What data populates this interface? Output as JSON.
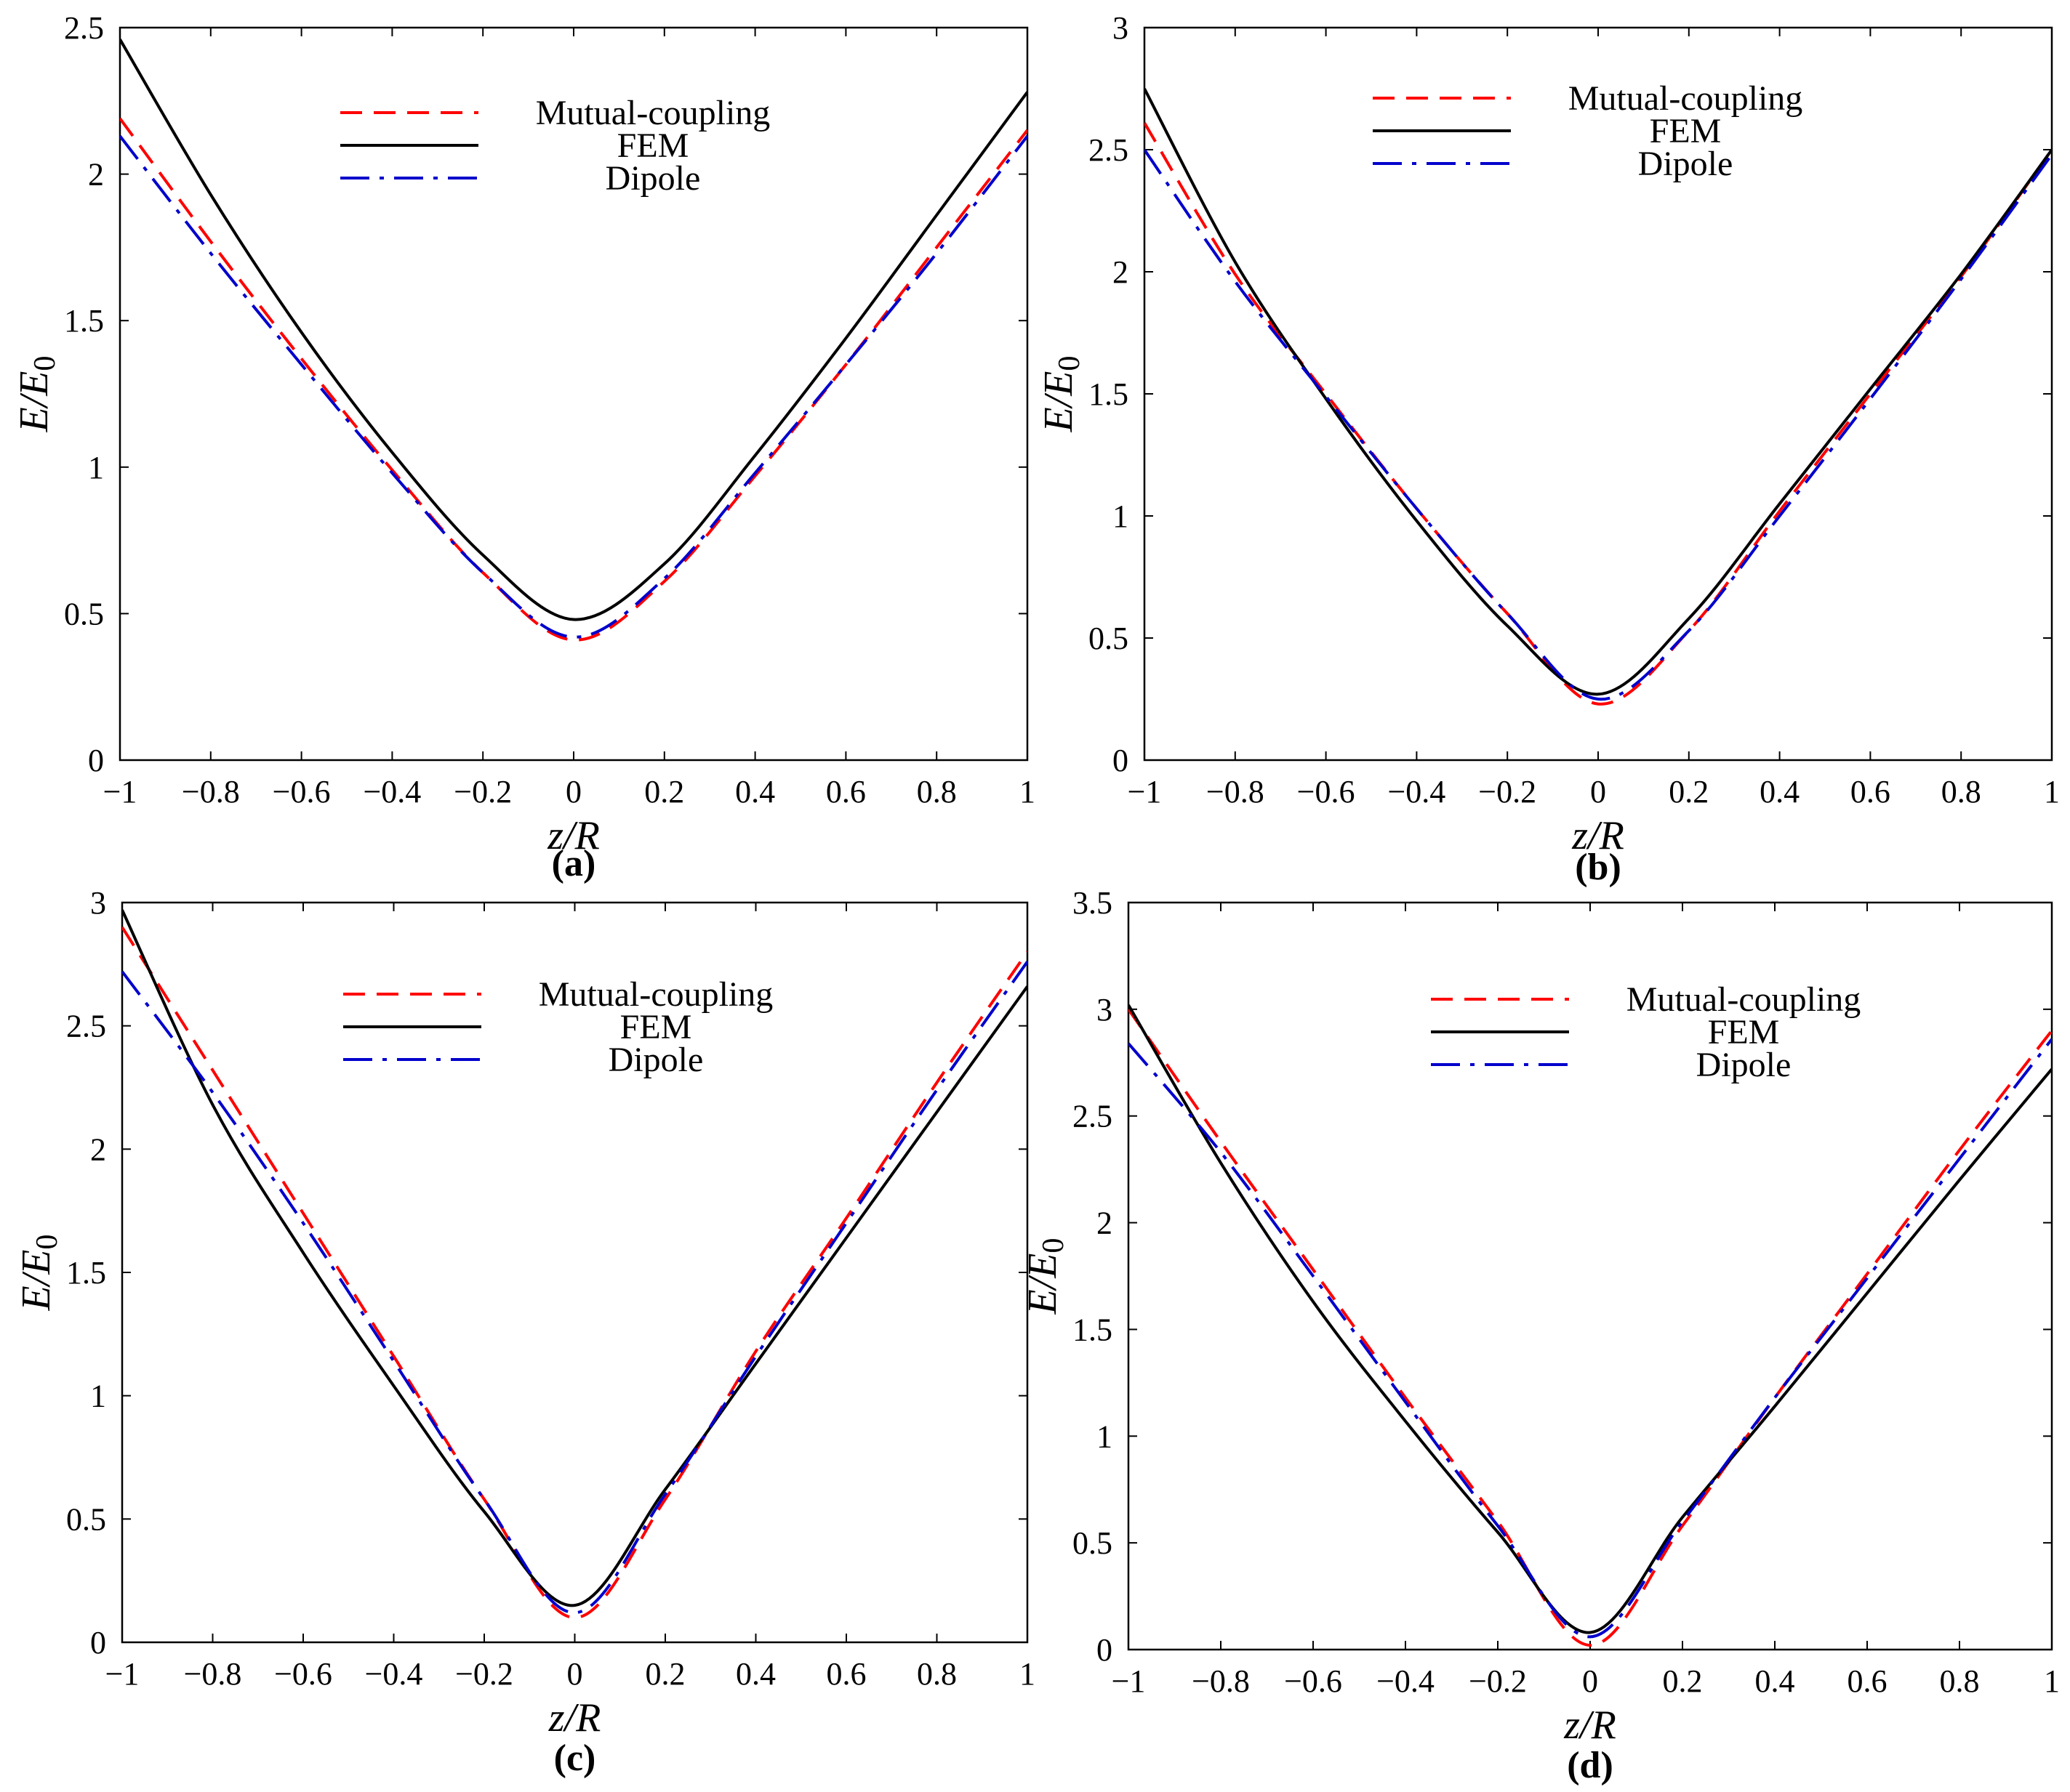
{
  "figure": {
    "xlabel": "z/R",
    "ylabel_main": "E/E",
    "ylabel_sub": "0",
    "legend_labels": [
      "Mutual-coupling",
      "FEM",
      "Dipole"
    ]
  },
  "colors": {
    "mutual": "#ff0000",
    "fem": "#000000",
    "dipole": "#0000cc"
  },
  "chart_data": [
    {
      "type": "line",
      "caption": "(a)",
      "xlabel": "z/R",
      "ylabel": "E/E0",
      "xlim": [
        -1,
        1
      ],
      "ylim": [
        0,
        2.5
      ],
      "xticks": [
        -1,
        -0.8,
        -0.6,
        -0.4,
        -0.2,
        0,
        0.2,
        0.4,
        0.6,
        0.8,
        1
      ],
      "xtick_labels": [
        "−1",
        "−0.8",
        "−0.6",
        "−0.4",
        "−0.2",
        "0",
        "0.2",
        "0.4",
        "0.6",
        "0.8",
        "1"
      ],
      "yticks": [
        0,
        0.5,
        1,
        1.5,
        2,
        2.5
      ],
      "ytick_labels": [
        "0",
        "0.5",
        "1",
        "1.5",
        "2",
        "2.5"
      ],
      "series": [
        {
          "name": "Mutual-coupling",
          "style": "dashed",
          "x": [
            -1,
            -0.8,
            -0.6,
            -0.4,
            -0.2,
            0,
            0.2,
            0.4,
            0.6,
            0.8,
            1
          ],
          "y": [
            2.19,
            1.77,
            1.37,
            0.99,
            0.64,
            0.41,
            0.61,
            0.97,
            1.35,
            1.75,
            2.15
          ]
        },
        {
          "name": "FEM",
          "style": "solid",
          "x": [
            -1,
            -0.8,
            -0.6,
            -0.4,
            -0.2,
            0,
            0.2,
            0.4,
            0.6,
            0.8,
            1
          ],
          "y": [
            2.46,
            1.93,
            1.46,
            1.05,
            0.7,
            0.48,
            0.67,
            1.04,
            1.44,
            1.86,
            2.28
          ]
        },
        {
          "name": "Dipole",
          "style": "dashdot",
          "x": [
            -1,
            -0.8,
            -0.6,
            -0.4,
            -0.2,
            0,
            0.2,
            0.4,
            0.6,
            0.8,
            1
          ],
          "y": [
            2.13,
            1.73,
            1.35,
            0.98,
            0.64,
            0.42,
            0.62,
            0.98,
            1.35,
            1.73,
            2.13
          ]
        }
      ]
    },
    {
      "type": "line",
      "caption": "(b)",
      "xlabel": "z/R",
      "ylabel": "E/E0",
      "xlim": [
        -1,
        1
      ],
      "ylim": [
        0,
        3
      ],
      "xticks": [
        -1,
        -0.8,
        -0.6,
        -0.4,
        -0.2,
        0,
        0.2,
        0.4,
        0.6,
        0.8,
        1
      ],
      "xtick_labels": [
        "−1",
        "−0.8",
        "−0.6",
        "−0.4",
        "−0.2",
        "0",
        "0.2",
        "0.4",
        "0.6",
        "0.8",
        "1"
      ],
      "yticks": [
        0,
        0.5,
        1,
        1.5,
        2,
        2.5,
        3
      ],
      "ytick_labels": [
        "0",
        "0.5",
        "1",
        "1.5",
        "2",
        "2.5",
        "3"
      ],
      "series": [
        {
          "name": "Mutual-coupling",
          "style": "dashed",
          "x": [
            -1,
            -0.8,
            -0.6,
            -0.4,
            -0.2,
            0,
            0.2,
            0.4,
            0.6,
            0.8,
            1
          ],
          "y": [
            2.61,
            1.99,
            1.5,
            1.03,
            0.6,
            0.23,
            0.53,
            1.02,
            1.5,
            1.98,
            2.5
          ]
        },
        {
          "name": "FEM",
          "style": "solid",
          "x": [
            -1,
            -0.8,
            -0.6,
            -0.4,
            -0.2,
            0,
            0.2,
            0.4,
            0.6,
            0.8,
            1
          ],
          "y": [
            2.75,
            2.04,
            1.48,
            0.98,
            0.55,
            0.27,
            0.58,
            1.05,
            1.52,
            1.99,
            2.5
          ]
        },
        {
          "name": "Dipole",
          "style": "dashdot",
          "x": [
            -1,
            -0.8,
            -0.6,
            -0.4,
            -0.2,
            0,
            0.2,
            0.4,
            0.6,
            0.8,
            1
          ],
          "y": [
            2.5,
            1.96,
            1.49,
            1.03,
            0.6,
            0.25,
            0.53,
            1.0,
            1.48,
            1.97,
            2.48
          ]
        }
      ]
    },
    {
      "type": "line",
      "caption": "(c)",
      "xlabel": "z/R",
      "ylabel": "E/E0",
      "xlim": [
        -1,
        1
      ],
      "ylim": [
        0,
        3
      ],
      "xticks": [
        -1,
        -0.8,
        -0.6,
        -0.4,
        -0.2,
        0,
        0.2,
        0.4,
        0.6,
        0.8,
        1
      ],
      "xtick_labels": [
        "−1",
        "−0.8",
        "−0.6",
        "−0.4",
        "−0.2",
        "0",
        "0.2",
        "0.4",
        "0.6",
        "0.8",
        "1"
      ],
      "yticks": [
        0,
        0.5,
        1,
        1.5,
        2,
        2.5,
        3
      ],
      "ytick_labels": [
        "0",
        "0.5",
        "1",
        "1.5",
        "2",
        "2.5",
        "3"
      ],
      "series": [
        {
          "name": "Mutual-coupling",
          "style": "dashed",
          "x": [
            -1,
            -0.8,
            -0.6,
            -0.4,
            -0.2,
            0,
            0.2,
            0.4,
            0.6,
            0.8,
            1
          ],
          "y": [
            2.9,
            2.32,
            1.74,
            1.16,
            0.58,
            0.1,
            0.58,
            1.18,
            1.72,
            2.27,
            2.8
          ]
        },
        {
          "name": "FEM",
          "style": "solid",
          "x": [
            -1,
            -0.8,
            -0.6,
            -0.4,
            -0.2,
            0,
            0.2,
            0.4,
            0.6,
            0.8,
            1
          ],
          "y": [
            2.97,
            2.18,
            1.58,
            1.04,
            0.53,
            0.15,
            0.62,
            1.13,
            1.64,
            2.15,
            2.66
          ]
        },
        {
          "name": "Dipole",
          "style": "dashdot",
          "x": [
            -1,
            -0.8,
            -0.6,
            -0.4,
            -0.2,
            0,
            0.2,
            0.4,
            0.6,
            0.8,
            1
          ],
          "y": [
            2.72,
            2.23,
            1.7,
            1.14,
            0.58,
            0.12,
            0.6,
            1.16,
            1.7,
            2.24,
            2.76
          ]
        }
      ]
    },
    {
      "type": "line",
      "caption": "(d)",
      "xlabel": "z/R",
      "ylabel": "E/E0",
      "xlim": [
        -1,
        1
      ],
      "ylim": [
        0,
        3.5
      ],
      "xticks": [
        -1,
        -0.8,
        -0.6,
        -0.4,
        -0.2,
        0,
        0.2,
        0.4,
        0.6,
        0.8,
        1
      ],
      "xtick_labels": [
        "−1",
        "−0.8",
        "−0.6",
        "−0.4",
        "−0.2",
        "0",
        "0.2",
        "0.4",
        "0.6",
        "0.8",
        "1"
      ],
      "yticks": [
        0,
        0.5,
        1,
        1.5,
        2,
        2.5,
        3,
        3.5
      ],
      "ytick_labels": [
        "0",
        "0.5",
        "1",
        "1.5",
        "2",
        "2.5",
        "3",
        "3.5"
      ],
      "series": [
        {
          "name": "Mutual-coupling",
          "style": "dashed",
          "x": [
            -1,
            -0.8,
            -0.6,
            -0.4,
            -0.2,
            0,
            0.2,
            0.4,
            0.6,
            0.8,
            1
          ],
          "y": [
            3.0,
            2.38,
            1.78,
            1.18,
            0.6,
            0.02,
            0.58,
            1.18,
            1.76,
            2.34,
            2.9
          ]
        },
        {
          "name": "FEM",
          "style": "solid",
          "x": [
            -1,
            -0.8,
            -0.6,
            -0.4,
            -0.2,
            0,
            0.2,
            0.4,
            0.6,
            0.8,
            1
          ],
          "y": [
            3.02,
            2.28,
            1.63,
            1.07,
            0.55,
            0.08,
            0.62,
            1.14,
            1.67,
            2.2,
            2.72
          ]
        },
        {
          "name": "Dipole",
          "style": "dashdot",
          "x": [
            -1,
            -0.8,
            -0.6,
            -0.4,
            -0.2,
            0,
            0.2,
            0.4,
            0.6,
            0.8,
            1
          ],
          "y": [
            2.84,
            2.33,
            1.75,
            1.16,
            0.58,
            0.06,
            0.6,
            1.18,
            1.74,
            2.3,
            2.86
          ]
        }
      ]
    }
  ]
}
